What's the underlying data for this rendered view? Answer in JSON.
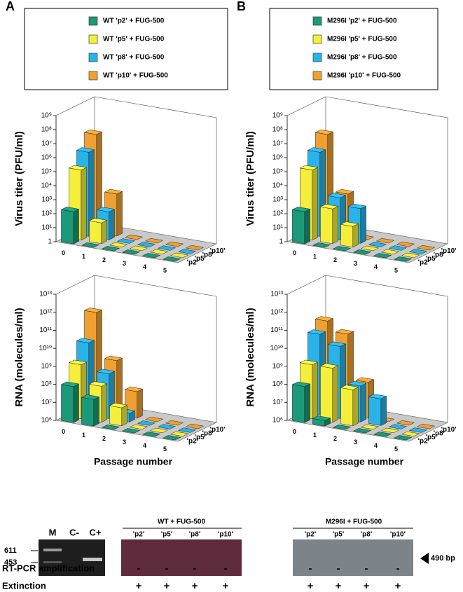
{
  "panel_labels": [
    "A",
    "B"
  ],
  "chart_data": [
    {
      "type": "bar3d",
      "ylabel": "Virus titer (PFU/ml)",
      "log_y": true,
      "ylim": [
        1,
        1000000000
      ],
      "yticks": [
        1,
        {
          "value": 10,
          "label": "10¹"
        },
        {
          "value": 100,
          "label": "10²"
        },
        {
          "value": 1000,
          "label": "10³"
        },
        {
          "value": 10000,
          "label": "10⁴"
        },
        {
          "value": 100000,
          "label": "10⁵"
        },
        {
          "value": 1000000,
          "label": "10⁶"
        },
        {
          "value": 10000000,
          "label": "10⁷"
        },
        {
          "value": 100000000,
          "label": "10⁸"
        },
        {
          "value": 1000000000,
          "label": "10⁹"
        }
      ],
      "categories": [
        "0",
        "1",
        "2",
        "3",
        "4",
        "5"
      ],
      "depth_labels": [
        "'p2'",
        "'p5'",
        "'p8'",
        "'p10'"
      ],
      "series": [
        {
          "name": "WT 'p2' + FUG-500",
          "color": "#1a9a78",
          "values": [
            200,
            1,
            1,
            1,
            1,
            1
          ]
        },
        {
          "name": "WT 'p5' + FUG-500",
          "color": "#f5ee3a",
          "values": [
            100000,
            30,
            1,
            1,
            1,
            1
          ]
        },
        {
          "name": "WT 'p8' + FUG-500",
          "color": "#29b3e8",
          "values": [
            1000000,
            100,
            1,
            1,
            1,
            1
          ]
        },
        {
          "name": "WT 'p10' + FUG-500",
          "color": "#f0a030",
          "values": [
            10000000,
            1000,
            1,
            1,
            1,
            1
          ]
        }
      ]
    },
    {
      "type": "bar3d",
      "ylabel": "Virus titer (PFU/ml)",
      "log_y": true,
      "ylim": [
        1,
        1000000000
      ],
      "yticks": [
        1,
        {
          "value": 10,
          "label": "10¹"
        },
        {
          "value": 100,
          "label": "10²"
        },
        {
          "value": 1000,
          "label": "10³"
        },
        {
          "value": 10000,
          "label": "10⁴"
        },
        {
          "value": 100000,
          "label": "10⁵"
        },
        {
          "value": 1000000,
          "label": "10⁶"
        },
        {
          "value": 10000000,
          "label": "10⁷"
        },
        {
          "value": 100000000,
          "label": "10⁸"
        },
        {
          "value": 1000000000,
          "label": "10⁹"
        }
      ],
      "categories": [
        "0",
        "1",
        "2",
        "3",
        "4",
        "5"
      ],
      "depth_labels": [
        "'p2'",
        "'p5'",
        "'p8'",
        "'p10'"
      ],
      "series": [
        {
          "name": "M296I 'p2' + FUG-500",
          "color": "#1a9a78",
          "values": [
            200,
            1,
            1,
            1,
            1,
            1
          ]
        },
        {
          "name": "M296I 'p5' + FUG-500",
          "color": "#f5ee3a",
          "values": [
            100000,
            300,
            30,
            1,
            1,
            1
          ]
        },
        {
          "name": "M296I 'p8' + FUG-500",
          "color": "#29b3e8",
          "values": [
            1000000,
            1000,
            300,
            1,
            1,
            1
          ]
        },
        {
          "name": "M296I 'p10' + FUG-500",
          "color": "#f0a030",
          "values": [
            10000000,
            1000,
            1,
            1,
            1,
            1
          ]
        }
      ]
    },
    {
      "type": "bar3d",
      "ylabel": "RNA (molecules/ml)",
      "xlabel": "Passage number",
      "log_y": true,
      "ylim": [
        1000000,
        10000000000000
      ],
      "yticks": [
        {
          "value": 1000000,
          "label": "10⁶"
        },
        {
          "value": 10000000,
          "label": "10⁷"
        },
        {
          "value": 100000000,
          "label": "10⁸"
        },
        {
          "value": 1000000000,
          "label": "10⁹"
        },
        {
          "value": 10000000000,
          "label": "10¹⁰"
        },
        {
          "value": 100000000000,
          "label": "10¹¹"
        },
        {
          "value": 1000000000000,
          "label": "10¹²"
        },
        {
          "value": 10000000000000,
          "label": "10¹³"
        }
      ],
      "categories": [
        "0",
        "1",
        "2",
        "3",
        "4",
        "5"
      ],
      "depth_labels": [
        "'p2'",
        "'p5'",
        "'p8'",
        "'p10'"
      ],
      "series": [
        {
          "color": "#1a9a78",
          "values": [
            100000000,
            30000000,
            1000000,
            1000000,
            1000000,
            1000000
          ]
        },
        {
          "color": "#f5ee3a",
          "values": [
            1000000000,
            100000000,
            10000000,
            1000000,
            1000000,
            1000000
          ]
        },
        {
          "color": "#29b3e8",
          "values": [
            10000000000,
            300000000,
            3000000,
            1000000,
            1000000,
            1000000
          ]
        },
        {
          "color": "#f0a030",
          "values": [
            300000000000,
            1000000000,
            30000000,
            1000000,
            1000000,
            1000000
          ]
        }
      ]
    },
    {
      "type": "bar3d",
      "ylabel": "RNA (molecules/ml)",
      "xlabel": "Passage number",
      "log_y": true,
      "ylim": [
        1000000,
        10000000000000
      ],
      "yticks": [
        {
          "value": 1000000,
          "label": "10⁶"
        },
        {
          "value": 10000000,
          "label": "10⁷"
        },
        {
          "value": 100000000,
          "label": "10⁸"
        },
        {
          "value": 1000000000,
          "label": "10⁹"
        },
        {
          "value": 10000000000,
          "label": "10¹⁰"
        },
        {
          "value": 100000000000,
          "label": "10¹¹"
        },
        {
          "value": 1000000000000,
          "label": "10¹²"
        },
        {
          "value": 10000000000000,
          "label": "10¹³"
        }
      ],
      "categories": [
        "0",
        "1",
        "2",
        "3",
        "4",
        "5"
      ],
      "depth_labels": [
        "'p2'",
        "'p5'",
        "'p8'",
        "'p10'"
      ],
      "series": [
        {
          "color": "#1a9a78",
          "values": [
            100000000,
            2000000,
            1000000,
            1000000,
            1000000,
            1000000
          ]
        },
        {
          "color": "#f5ee3a",
          "values": [
            1000000000,
            1000000000,
            100000000,
            1000000,
            1000000,
            1000000
          ]
        },
        {
          "color": "#29b3e8",
          "values": [
            30000000000,
            10000000000,
            100000000,
            30000000,
            1000000,
            1000000
          ]
        },
        {
          "color": "#f0a030",
          "values": [
            100000000000,
            30000000000,
            100000000,
            1000000,
            1000000,
            1000000
          ]
        }
      ]
    }
  ],
  "gel": {
    "marker_lanes": [
      "M",
      "C-",
      "C+"
    ],
    "sizes": [
      611,
      453
    ],
    "wt_title": "WT + FUG-500",
    "wt_lanes": [
      "'p2'",
      "'p5'",
      "'p8'",
      "'p10'"
    ],
    "mut_title": "M296I + FUG-500",
    "mut_lanes": [
      "'p2'",
      "'p5'",
      "'p8'",
      "'p10'"
    ],
    "band_label": "490 bp",
    "rows": [
      {
        "label": "RT-PCR amplification",
        "marks": [
          "-",
          "-",
          "-",
          "-",
          "-",
          "-",
          "-",
          "-"
        ]
      },
      {
        "label": "Extinction",
        "marks": [
          "+",
          "+",
          "+",
          "+",
          "+",
          "+",
          "+",
          "+"
        ]
      }
    ]
  }
}
